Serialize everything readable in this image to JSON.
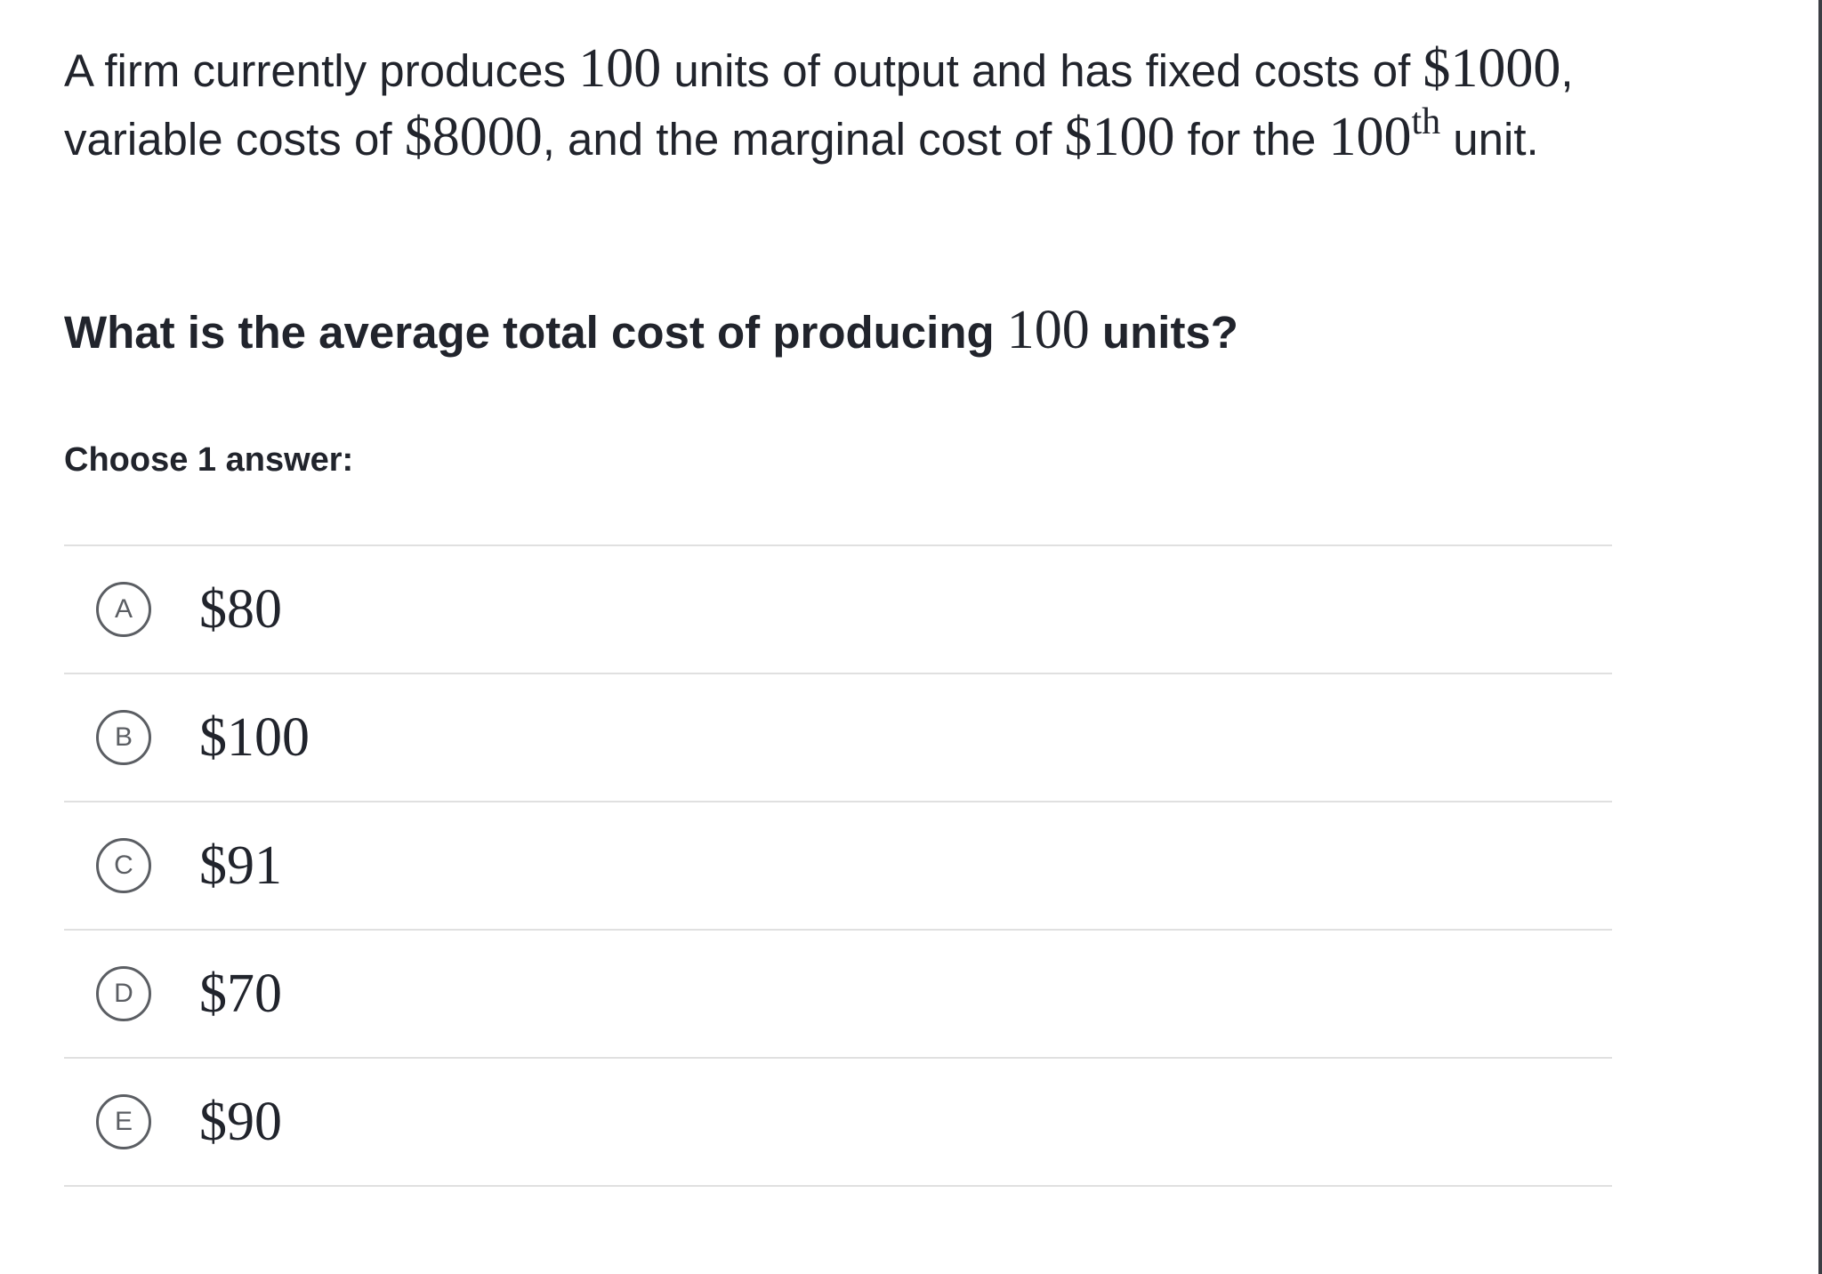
{
  "prompt": {
    "t1": "A firm currently produces ",
    "m1": "100",
    "t2": " units of output and has fixed costs of ",
    "m2": "$1000",
    "t3": ", variable costs of ",
    "m3": "$8000",
    "t4": ", and the marginal cost of ",
    "m4": "$100",
    "t5": " for the ",
    "m5": "100",
    "sup": "th",
    "t6": " unit."
  },
  "question": {
    "t1": "What is the average total cost of producing ",
    "m1": "100",
    "t2": " units?"
  },
  "instruction": "Choose 1 answer:",
  "choices": [
    {
      "letter": "A",
      "text": "$80"
    },
    {
      "letter": "B",
      "text": "$100"
    },
    {
      "letter": "C",
      "text": "$91"
    },
    {
      "letter": "D",
      "text": "$70"
    },
    {
      "letter": "E",
      "text": "$90"
    }
  ]
}
